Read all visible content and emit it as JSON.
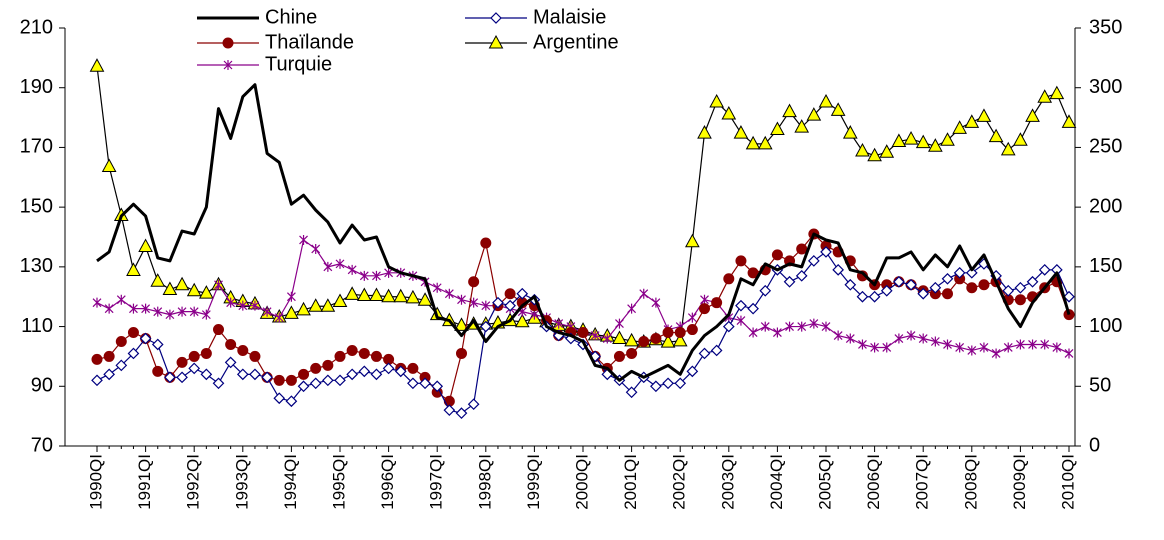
{
  "chart_data": {
    "type": "line",
    "categories": [
      "1990QI",
      null,
      null,
      null,
      "1991QI",
      null,
      null,
      null,
      "1992QI",
      null,
      null,
      null,
      "1993QI",
      null,
      null,
      null,
      "1994QI",
      null,
      null,
      null,
      "1995QI",
      null,
      null,
      null,
      "1996QI",
      null,
      null,
      null,
      "1997QI",
      null,
      null,
      null,
      "1998QI",
      null,
      null,
      null,
      "1999QI",
      null,
      null,
      null,
      "2000QI",
      null,
      null,
      null,
      "2001QI",
      null,
      null,
      null,
      "2002QI",
      null,
      null,
      null,
      "2003QI",
      null,
      null,
      null,
      "2004QI",
      null,
      null,
      null,
      "2005QI",
      null,
      null,
      null,
      "2006QI",
      null,
      null,
      null,
      "2007QI",
      null,
      null,
      null,
      "2008QI",
      null,
      null,
      null,
      "2009QI",
      null,
      null,
      null,
      "2010QI"
    ],
    "series": [
      {
        "name": "Chine",
        "color": "#000000",
        "marker": "none",
        "width": 3,
        "values": [
          132,
          135,
          147,
          151,
          147,
          133,
          132,
          142,
          141,
          150,
          183,
          173,
          187,
          191,
          168,
          165,
          151,
          154,
          149,
          145,
          138,
          144,
          139,
          140,
          130,
          128,
          127,
          126,
          113,
          112,
          107,
          112,
          105,
          110,
          112,
          117,
          120,
          110,
          108,
          107,
          105,
          97,
          96,
          92,
          95,
          93,
          95,
          97,
          94,
          102,
          107,
          110,
          114,
          126,
          124,
          131,
          129,
          131,
          130,
          141,
          139,
          138,
          129,
          128,
          124,
          133,
          133,
          135,
          129,
          134,
          130,
          137,
          129,
          134,
          125,
          116,
          110,
          118,
          123,
          128,
          114
        ]
      },
      {
        "name": "Malaisie",
        "color": "#000080",
        "marker": "diamond",
        "width": 1.2,
        "values": [
          92,
          94,
          97,
          101,
          106,
          104,
          93,
          93,
          96,
          94,
          91,
          98,
          94,
          94,
          93,
          86,
          85,
          90,
          91,
          92,
          92,
          94,
          95,
          94,
          96,
          95,
          91,
          91,
          90,
          82,
          81,
          84,
          110,
          118,
          117,
          121,
          119,
          110,
          107,
          106,
          104,
          100,
          94,
          92,
          88,
          93,
          90,
          91,
          91,
          95,
          101,
          102,
          110,
          117,
          116,
          122,
          129,
          125,
          127,
          132,
          135,
          129,
          124,
          120,
          120,
          122,
          125,
          124,
          121,
          123,
          126,
          128,
          128,
          131,
          127,
          122,
          123,
          125,
          129,
          129,
          120
        ]
      },
      {
        "name": "Thaïlande",
        "color": "#8b0000",
        "marker": "circle",
        "width": 1.2,
        "values": [
          99,
          100,
          105,
          108,
          106,
          95,
          93,
          98,
          100,
          101,
          109,
          104,
          102,
          100,
          93,
          92,
          92,
          94,
          96,
          97,
          100,
          102,
          101,
          100,
          99,
          96,
          96,
          93,
          88,
          85,
          101,
          125,
          138,
          117,
          121,
          118,
          117,
          112,
          107,
          108,
          108,
          100,
          96,
          100,
          101,
          105,
          106,
          108,
          108,
          109,
          116,
          118,
          126,
          132,
          128,
          129,
          134,
          132,
          136,
          141,
          137,
          135,
          132,
          127,
          124,
          124,
          125,
          124,
          122,
          121,
          121,
          126,
          123,
          124,
          125,
          119,
          119,
          120,
          123,
          125,
          114
        ]
      },
      {
        "name": "Argentine",
        "color": "#000000",
        "marker": "triangle",
        "markerFill": "#ffff00",
        "width": 1.2,
        "axis": "y2",
        "values": [
          318,
          234,
          193,
          147,
          167,
          138,
          131,
          135,
          130,
          128,
          135,
          124,
          121,
          119,
          111,
          108,
          111,
          114,
          117,
          117,
          121,
          127,
          126,
          126,
          125,
          125,
          124,
          122,
          110,
          105,
          101,
          102,
          102,
          103,
          105,
          104,
          107,
          104,
          101,
          100,
          97,
          93,
          92,
          90,
          88,
          87,
          89,
          87,
          88,
          171,
          262,
          288,
          278,
          262,
          253,
          253,
          265,
          280,
          267,
          277,
          288,
          281,
          262,
          247,
          243,
          246,
          255,
          257,
          254,
          251,
          256,
          266,
          271,
          276,
          259,
          248,
          256,
          276,
          292,
          295,
          271
        ]
      },
      {
        "name": "Turquie",
        "color": "#8b008b",
        "marker": "star",
        "width": 1.2,
        "values": [
          118,
          116,
          119,
          116,
          116,
          115,
          114,
          115,
          115,
          114,
          124,
          118,
          117,
          117,
          115,
          113,
          120,
          139,
          136,
          130,
          131,
          129,
          127,
          127,
          128,
          128,
          127,
          125,
          123,
          121,
          119,
          118,
          117,
          117,
          116,
          115,
          114,
          113,
          111,
          110,
          108,
          107,
          106,
          111,
          116,
          121,
          118,
          109,
          110,
          113,
          119,
          118,
          113,
          112,
          108,
          110,
          108,
          110,
          110,
          111,
          110,
          107,
          106,
          104,
          103,
          103,
          106,
          107,
          106,
          105,
          104,
          103,
          102,
          103,
          101,
          103,
          104,
          104,
          104,
          103,
          101
        ]
      }
    ],
    "ylim": [
      70,
      210
    ],
    "yticks": [
      70,
      90,
      110,
      130,
      150,
      170,
      190,
      210
    ],
    "y2lim": [
      0,
      350
    ],
    "y2ticks": [
      0,
      50,
      100,
      150,
      200,
      250,
      300,
      350
    ],
    "grid": false,
    "legend": "top"
  }
}
